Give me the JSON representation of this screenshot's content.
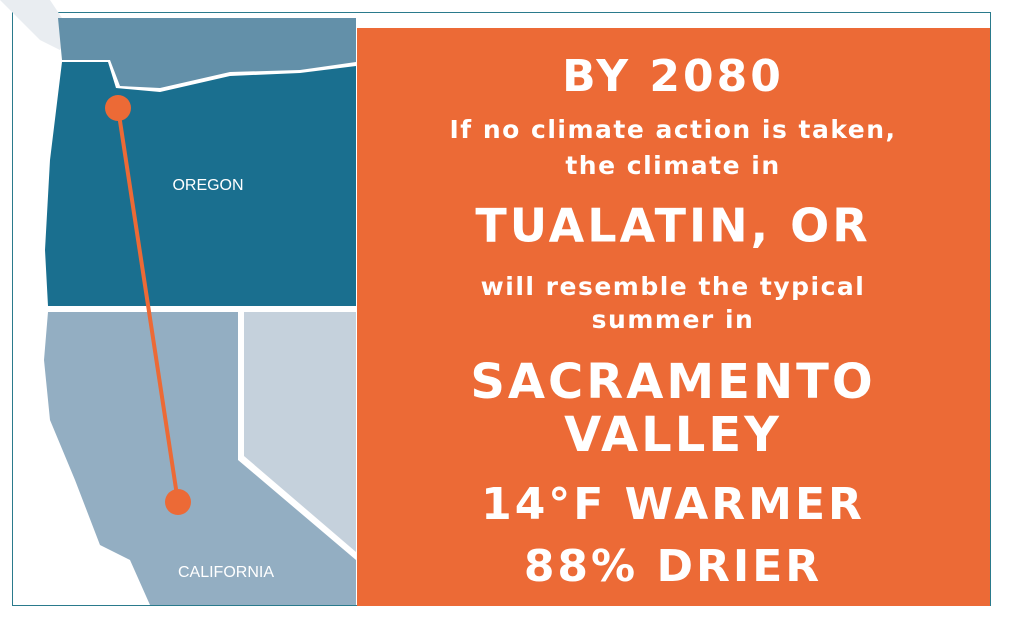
{
  "map": {
    "labels": {
      "oregon": "OREGON",
      "california": "CALIFORNIA"
    }
  },
  "panel": {
    "heading": "BY 2080",
    "intro": [
      "If no climate action is taken,",
      "the climate in"
    ],
    "city": "TUALATIN, OR",
    "bridge": [
      "will resemble the typical",
      "summer in"
    ],
    "match": [
      "SACRAMENTO",
      "VALLEY"
    ],
    "warmer": "14°F WARMER",
    "drier": "88% DRIER"
  }
}
